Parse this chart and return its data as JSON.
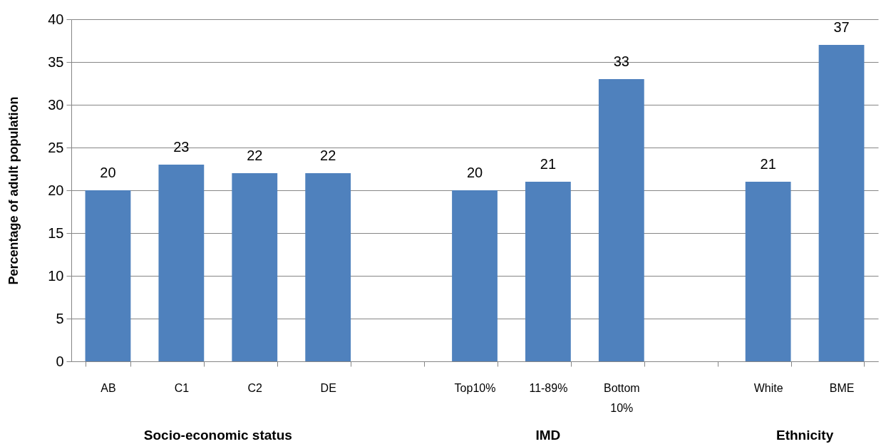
{
  "chart_data": {
    "type": "bar",
    "ylabel": "Percentage of adult population",
    "categories": [
      "AB",
      "C1",
      "C2",
      "DE",
      null,
      "Top10%",
      "11-89%",
      "Bottom 10%",
      null,
      "White",
      "BME"
    ],
    "values": [
      20,
      23,
      22,
      22,
      null,
      20,
      21,
      33,
      null,
      21,
      37
    ],
    "color": "#4f81bd",
    "ylim": [
      0,
      40
    ],
    "yticks": [
      0,
      5,
      10,
      15,
      20,
      25,
      30,
      35,
      40
    ],
    "grid": "y",
    "data_labels": true,
    "annotations": [
      "Socio-economic status",
      "IMD",
      "Ethnicity"
    ]
  }
}
